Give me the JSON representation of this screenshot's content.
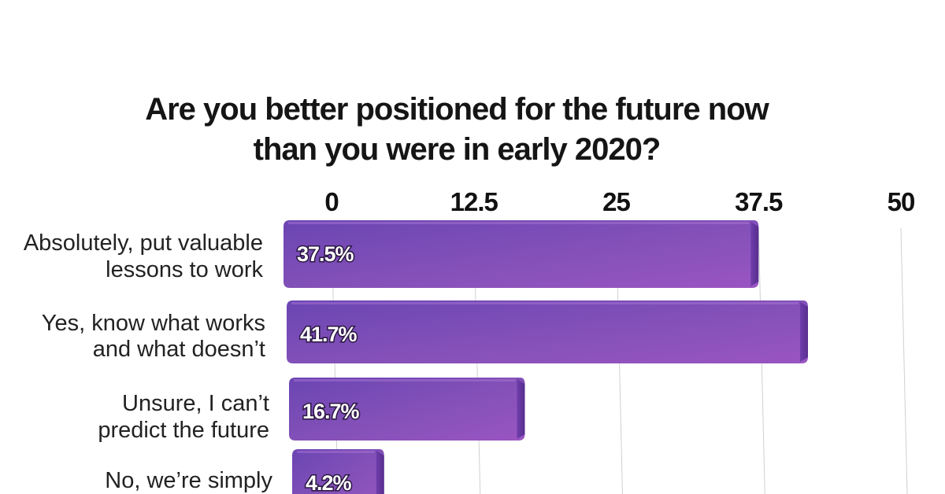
{
  "chart_data": {
    "type": "bar",
    "orientation": "horizontal",
    "title": [
      "Are you better positioned for the future now",
      "than you were in early 2020?"
    ],
    "categories": [
      [
        "Absolutely, put valuable",
        "lessons to work"
      ],
      [
        "Yes, know what works",
        "and what doesn’t"
      ],
      [
        "Unsure, I can’t",
        "predict the future"
      ],
      [
        "No, we’re simply",
        ""
      ]
    ],
    "values": [
      37.5,
      41.7,
      16.7,
      4.2
    ],
    "data_labels": [
      "37.5%",
      "41.7%",
      "16.7%",
      "4.2%"
    ],
    "xticks": [
      0,
      12.5,
      25,
      37.5,
      50
    ],
    "tick_labels": [
      "0",
      "12.5",
      "25",
      "37.5",
      "50"
    ],
    "xlim": [
      0,
      50
    ],
    "grid": true,
    "axis_position": "top",
    "colors": {
      "bar_main": "#7c4fb6",
      "bar_light": "#9d5fc9",
      "bar_dark": "#5b2f94",
      "gridline": "#cccccc"
    }
  }
}
